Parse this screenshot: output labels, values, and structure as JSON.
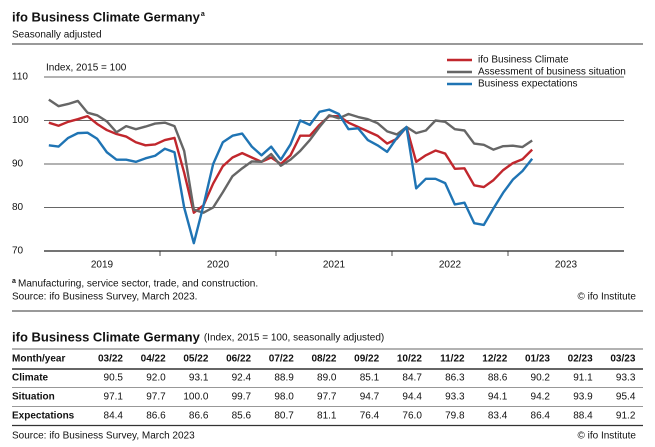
{
  "chart_data": {
    "type": "line",
    "title": "ifo Business Climate Germany",
    "title_marker": "a",
    "subtitle": "Seasonally adjusted",
    "y_axis_label": "Index, 2015 = 100",
    "categories": [
      null,
      null,
      null,
      null,
      null,
      null,
      "2019",
      null,
      null,
      null,
      null,
      null,
      null,
      null,
      null,
      null,
      null,
      null,
      "2020",
      null,
      null,
      null,
      null,
      null,
      null,
      null,
      null,
      null,
      null,
      null,
      "2021",
      null,
      null,
      null,
      null,
      null,
      null,
      null,
      null,
      null,
      null,
      null,
      "2022",
      null,
      null,
      null,
      null,
      null,
      null,
      null,
      null,
      null,
      null,
      null,
      "2023",
      null,
      null,
      null,
      null,
      null
    ],
    "series": [
      {
        "name": "ifo Business Climate",
        "color": "#c1272d",
        "values": [
          99.5,
          98.8,
          99.7,
          100.3,
          101.0,
          99.2,
          97.8,
          96.9,
          96.3,
          95.0,
          94.3,
          94.5,
          95.5,
          96.0,
          88.0,
          78.8,
          80.5,
          85.5,
          89.5,
          91.5,
          92.5,
          91.5,
          90.5,
          91.5,
          90.0,
          92.0,
          96.5,
          96.5,
          99.0,
          101.0,
          101.0,
          99.5,
          98.5,
          97.5,
          96.5,
          94.7,
          95.8,
          98.5,
          90.5,
          92.0,
          93.1,
          92.4,
          88.9,
          89.0,
          85.1,
          84.7,
          86.3,
          88.6,
          90.2,
          91.1,
          93.3,
          null,
          null,
          null,
          null,
          null,
          null,
          null,
          null,
          null
        ]
      },
      {
        "name": "Assessment of business situation",
        "color": "#666666",
        "values": [
          104.8,
          103.3,
          103.8,
          104.5,
          101.8,
          101.2,
          99.8,
          97.3,
          98.7,
          98.0,
          98.6,
          99.3,
          99.5,
          98.7,
          93.0,
          79.5,
          78.8,
          80.0,
          83.5,
          87.2,
          89.0,
          90.6,
          90.5,
          92.3,
          89.6,
          91.0,
          93.0,
          95.5,
          98.5,
          101.2,
          100.5,
          101.5,
          100.8,
          100.3,
          99.4,
          97.5,
          96.8,
          98.5,
          97.1,
          97.7,
          100.0,
          99.7,
          98.0,
          97.7,
          94.7,
          94.4,
          93.3,
          94.1,
          94.2,
          93.9,
          95.4,
          null,
          null,
          null,
          null,
          null,
          null,
          null,
          null,
          null
        ]
      },
      {
        "name": "Business expectations",
        "color": "#1f74b4",
        "values": [
          94.3,
          94.0,
          96.0,
          97.1,
          97.2,
          95.8,
          92.7,
          91.0,
          91.0,
          90.5,
          91.3,
          91.9,
          93.5,
          92.7,
          80.0,
          71.8,
          80.5,
          90.0,
          95.0,
          96.5,
          97.0,
          94.0,
          92.0,
          94.0,
          91.0,
          94.5,
          100.0,
          99.0,
          102.0,
          102.5,
          101.5,
          98.0,
          98.2,
          95.5,
          94.3,
          92.8,
          96.0,
          98.5,
          84.4,
          86.6,
          86.6,
          85.6,
          80.7,
          81.1,
          76.4,
          76.0,
          79.8,
          83.4,
          86.4,
          88.4,
          91.2,
          null,
          null,
          null,
          null,
          null,
          null,
          null,
          null,
          null
        ]
      }
    ],
    "ylim": [
      70,
      110
    ],
    "yticks": [
      70,
      80,
      90,
      100,
      110
    ],
    "grid": true,
    "legend": "top-right",
    "footnote_marker": "a",
    "footnote": "Manufacturing, service sector, trade, and construction.",
    "source": "Source: ifo Business Survey, March 2023.",
    "copyright": "© ifo Institute"
  },
  "table": {
    "title": "ifo Business Climate Germany",
    "subtitle": "(Index, 2015 = 100, seasonally adjusted)",
    "header": [
      "Month/year",
      "03/22",
      "04/22",
      "05/22",
      "06/22",
      "07/22",
      "08/22",
      "09/22",
      "10/22",
      "11/22",
      "12/22",
      "01/23",
      "02/23",
      "03/23"
    ],
    "rows": [
      [
        "Climate",
        "90.5",
        "92.0",
        "93.1",
        "92.4",
        "88.9",
        "89.0",
        "85.1",
        "84.7",
        "86.3",
        "88.6",
        "90.2",
        "91.1",
        "93.3"
      ],
      [
        "Situation",
        "97.1",
        "97.7",
        "100.0",
        "99.7",
        "98.0",
        "97.7",
        "94.7",
        "94.4",
        "93.3",
        "94.1",
        "94.2",
        "93.9",
        "95.4"
      ],
      [
        "Expectations",
        "84.4",
        "86.6",
        "86.6",
        "85.6",
        "80.7",
        "81.1",
        "76.4",
        "76.0",
        "79.8",
        "83.4",
        "86.4",
        "88.4",
        "91.2"
      ]
    ],
    "source": "Source: ifo Business Survey, March 2023",
    "copyright": "© ifo Institute"
  }
}
